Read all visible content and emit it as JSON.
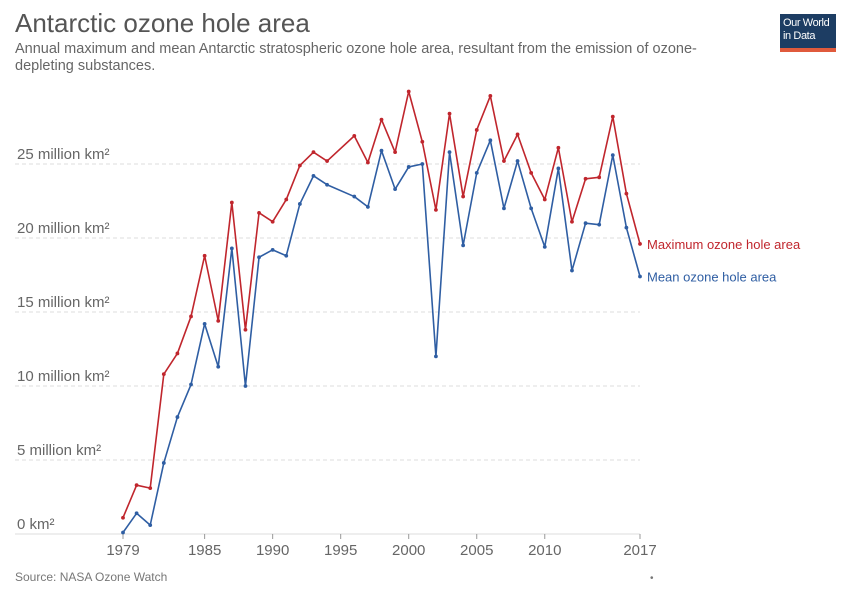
{
  "header": {
    "title": "Antarctic ozone hole area",
    "subtitle": "Annual maximum and mean Antarctic stratospheric ozone hole area, resultant from the emission of ozone-depleting substances."
  },
  "logo": {
    "line1": "Our World",
    "line2": "in Data"
  },
  "footer": {
    "source": "Source: NASA Ozone Watch",
    "dot": "•"
  },
  "colors": {
    "max": "#c0262d",
    "mean": "#2f5ea3",
    "grid": "#dddddd"
  },
  "chart_data": {
    "type": "line",
    "title": "Antarctic ozone hole area",
    "xlim": [
      1979,
      2017
    ],
    "ylim": [
      0,
      30
    ],
    "y_ticks": [
      0,
      5,
      10,
      15,
      20,
      25
    ],
    "y_tick_labels": [
      "0 km²",
      "5 million km²",
      "10 million km²",
      "15 million km²",
      "20 million km²",
      "25 million km²"
    ],
    "x_ticks": [
      1979,
      1985,
      1990,
      1995,
      2000,
      2005,
      2010,
      2017
    ],
    "x_tick_labels": [
      "1979",
      "1985",
      "1990",
      "1995",
      "2000",
      "2005",
      "2010",
      "2017"
    ],
    "grid": "horizontal dashed",
    "series": [
      {
        "name": "Maximum ozone hole area",
        "color": "#c0262d",
        "points": [
          [
            1979,
            1.1
          ],
          [
            1980,
            3.3
          ],
          [
            1981,
            3.1
          ],
          [
            1982,
            10.8
          ],
          [
            1983,
            12.2
          ],
          [
            1984,
            14.7
          ],
          [
            1985,
            18.8
          ],
          [
            1986,
            14.4
          ],
          [
            1987,
            22.4
          ],
          [
            1988,
            13.8
          ],
          [
            1989,
            21.7
          ],
          [
            1990,
            21.1
          ],
          [
            1991,
            22.6
          ],
          [
            1992,
            24.9
          ],
          [
            1993,
            25.8
          ],
          [
            1994,
            25.2
          ],
          [
            1996,
            26.9
          ],
          [
            1997,
            25.1
          ],
          [
            1998,
            28.0
          ],
          [
            1999,
            25.8
          ],
          [
            2000,
            29.9
          ],
          [
            2001,
            26.5
          ],
          [
            2002,
            21.9
          ],
          [
            2003,
            28.4
          ],
          [
            2004,
            22.8
          ],
          [
            2005,
            27.3
          ],
          [
            2006,
            29.6
          ],
          [
            2007,
            25.2
          ],
          [
            2008,
            27.0
          ],
          [
            2009,
            24.4
          ],
          [
            2010,
            22.6
          ],
          [
            2011,
            26.1
          ],
          [
            2012,
            21.1
          ],
          [
            2013,
            24.0
          ],
          [
            2014,
            24.1
          ],
          [
            2015,
            28.2
          ],
          [
            2016,
            23.0
          ],
          [
            2017,
            19.6
          ]
        ]
      },
      {
        "name": "Mean ozone hole area",
        "color": "#2f5ea3",
        "points": [
          [
            1979,
            0.1
          ],
          [
            1980,
            1.4
          ],
          [
            1981,
            0.6
          ],
          [
            1982,
            4.8
          ],
          [
            1983,
            7.9
          ],
          [
            1984,
            10.1
          ],
          [
            1985,
            14.2
          ],
          [
            1986,
            11.3
          ],
          [
            1987,
            19.3
          ],
          [
            1988,
            10.0
          ],
          [
            1989,
            18.7
          ],
          [
            1990,
            19.2
          ],
          [
            1991,
            18.8
          ],
          [
            1992,
            22.3
          ],
          [
            1993,
            24.2
          ],
          [
            1994,
            23.6
          ],
          [
            1996,
            22.8
          ],
          [
            1997,
            22.1
          ],
          [
            1998,
            25.9
          ],
          [
            1999,
            23.3
          ],
          [
            2000,
            24.8
          ],
          [
            2001,
            25.0
          ],
          [
            2002,
            12.0
          ],
          [
            2003,
            25.8
          ],
          [
            2004,
            19.5
          ],
          [
            2005,
            24.4
          ],
          [
            2006,
            26.6
          ],
          [
            2007,
            22.0
          ],
          [
            2008,
            25.2
          ],
          [
            2009,
            22.0
          ],
          [
            2010,
            19.4
          ],
          [
            2011,
            24.7
          ],
          [
            2012,
            17.8
          ],
          [
            2013,
            21.0
          ],
          [
            2014,
            20.9
          ],
          [
            2015,
            25.6
          ],
          [
            2016,
            20.7
          ],
          [
            2017,
            17.4
          ]
        ]
      }
    ]
  }
}
